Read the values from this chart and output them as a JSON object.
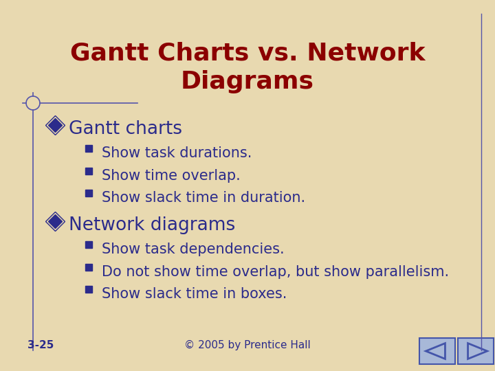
{
  "title": "Gantt Charts vs. Network\nDiagrams",
  "title_color": "#8B0000",
  "title_fontsize": 26,
  "background_color": "#E8D9B0",
  "text_color": "#2B2B8B",
  "section1_header": "◆ Gantt charts",
  "section1_bullets": [
    "Show task durations.",
    "Show time overlap.",
    "Show slack time in duration."
  ],
  "section2_header": "◆ Network diagrams",
  "section2_bullets": [
    "Show task dependencies.",
    "Do not show time overlap, but show parallelism.",
    "Show slack time in boxes."
  ],
  "footer_left": "3-25",
  "footer_center": "© 2005 by Prentice Hall",
  "header_fontsize": 19,
  "bullet_fontsize": 15,
  "footer_fontsize": 11,
  "border_color": "#5555AA",
  "nav_face_color": "#A8B8D8",
  "nav_edge_color": "#4455AA"
}
